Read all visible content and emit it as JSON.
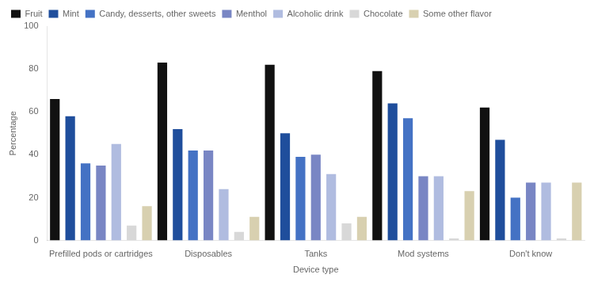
{
  "chart_data": {
    "type": "bar",
    "categories": [
      "Prefilled pods or cartridges",
      "Disposables",
      "Tanks",
      "Mod systems",
      "Don't know"
    ],
    "series": [
      {
        "name": "Fruit",
        "color": "#111111",
        "values": [
          66,
          83,
          82,
          79,
          62
        ]
      },
      {
        "name": "Mint",
        "color": "#1f4e9c",
        "values": [
          58,
          52,
          50,
          64,
          47
        ]
      },
      {
        "name": "Candy, desserts, other sweets",
        "color": "#4472c4",
        "values": [
          36,
          42,
          39,
          57,
          20
        ]
      },
      {
        "name": "Menthol",
        "color": "#7986c4",
        "values": [
          35,
          42,
          40,
          30,
          27
        ]
      },
      {
        "name": "Alcoholic drink",
        "color": "#b0bce0",
        "values": [
          45,
          24,
          31,
          30,
          27
        ]
      },
      {
        "name": "Chocolate",
        "color": "#d8d8d8",
        "values": [
          7,
          4,
          8,
          1,
          1
        ]
      },
      {
        "name": "Some other flavor",
        "color": "#d8d0b0",
        "values": [
          16,
          11,
          11,
          23,
          27
        ]
      }
    ],
    "xlabel": "Device type",
    "ylabel": "Percentage",
    "ylim": [
      0,
      100
    ],
    "yticks": [
      0,
      20,
      40,
      60,
      80,
      100
    ],
    "grid": false,
    "legend": "upper left"
  }
}
